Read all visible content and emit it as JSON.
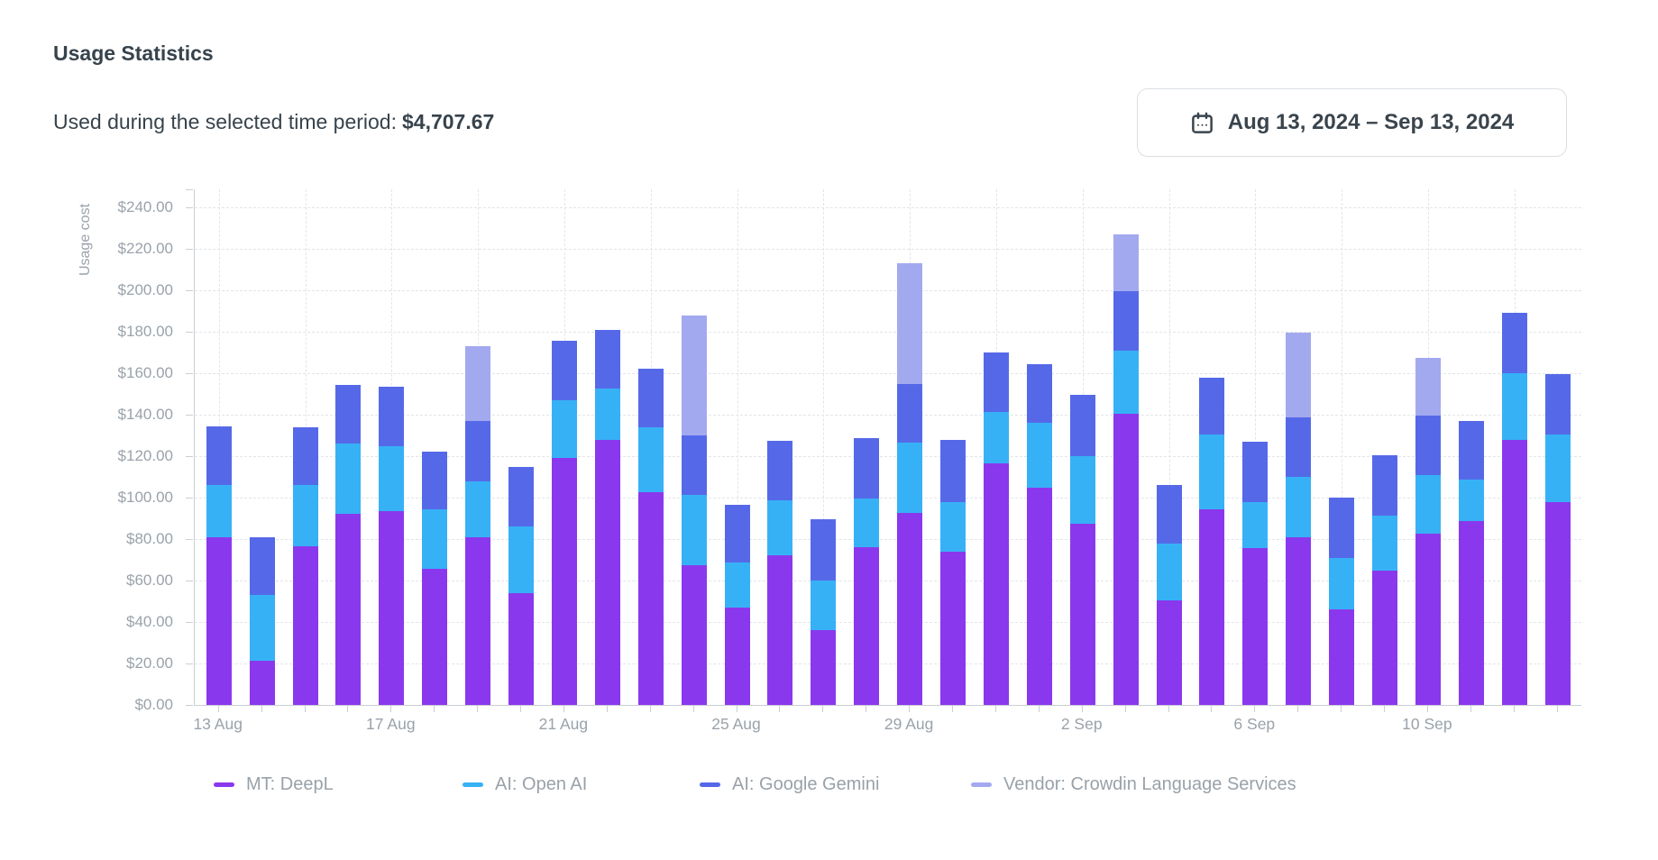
{
  "header": {
    "title": "Usage Statistics",
    "subtitle_label": "Used during the selected time period:",
    "subtitle_amount": "$4,707.67",
    "date_range_button": {
      "icon": "calendar-icon",
      "label": "Aug 13, 2024 – Sep 13, 2024"
    }
  },
  "chart_data": {
    "type": "bar",
    "stacked": true,
    "ylabel": "Usage cost",
    "ylim": [
      0,
      250
    ],
    "grid": "dashed",
    "legend_position": "bottom",
    "y_tick_values": [
      0,
      20,
      40,
      60,
      80,
      100,
      120,
      140,
      160,
      180,
      200,
      220,
      240
    ],
    "y_tick_labels": [
      "$0.00",
      "$20.00",
      "$40.00",
      "$60.00",
      "$80.00",
      "$100.00",
      "$120.00",
      "$140.00",
      "$160.00",
      "$180.00",
      "$200.00",
      "$220.00",
      "$240.00"
    ],
    "categories": [
      "13 Aug",
      "14 Aug",
      "15 Aug",
      "16 Aug",
      "17 Aug",
      "18 Aug",
      "19 Aug",
      "20 Aug",
      "21 Aug",
      "22 Aug",
      "23 Aug",
      "24 Aug",
      "25 Aug",
      "26 Aug",
      "27 Aug",
      "28 Aug",
      "29 Aug",
      "30 Aug",
      "31 Aug",
      "1 Sep",
      "2 Sep",
      "3 Sep",
      "4 Sep",
      "5 Sep",
      "6 Sep",
      "7 Sep",
      "8 Sep",
      "9 Sep",
      "10 Sep",
      "11 Sep",
      "12 Sep",
      "13 Sep"
    ],
    "x_tick_labels_shown": [
      "13 Aug",
      "17 Aug",
      "21 Aug",
      "25 Aug",
      "29 Aug",
      "2 Sep",
      "6 Sep",
      "10 Sep"
    ],
    "series": [
      {
        "name": "MT: DeepL",
        "color": "#8a38ed",
        "values": [
          81,
          21.5,
          76.5,
          92,
          93.5,
          65.5,
          81,
          54,
          119,
          128,
          102.5,
          67.5,
          47,
          72,
          36,
          76,
          92.5,
          74,
          116.5,
          105,
          87.5,
          140.5,
          50.5,
          94.5,
          75.5,
          81,
          46,
          65,
          82.5,
          88.5,
          128,
          98
        ]
      },
      {
        "name": "AI: Open AI",
        "color": "#37b1f6",
        "values": [
          25,
          31.5,
          29.5,
          34,
          31.5,
          29,
          27,
          32,
          28,
          24.5,
          31.5,
          34,
          21.5,
          26.5,
          24,
          23.5,
          34,
          24,
          25,
          31,
          32.5,
          30.5,
          27.5,
          36,
          22.5,
          29,
          25,
          26.5,
          28.5,
          20,
          32,
          32.5
        ]
      },
      {
        "name": "AI: Google Gemini",
        "color": "#5569e8",
        "values": [
          28.5,
          28,
          28,
          28.5,
          28.5,
          27.5,
          29,
          29,
          28.5,
          28.5,
          28,
          28.5,
          28,
          29,
          29.5,
          29,
          28.5,
          30,
          28.5,
          28.5,
          29.5,
          28.5,
          28,
          27.5,
          29,
          28.5,
          29,
          29,
          28.5,
          28.5,
          29,
          29
        ]
      },
      {
        "name": "Vendor: Crowdin Language Services",
        "color": "#a3a9ef",
        "values": [
          0,
          0,
          0,
          0,
          0,
          0,
          36,
          0,
          0,
          0,
          0,
          58,
          0,
          0,
          0,
          0,
          58,
          0,
          0,
          0,
          0,
          27.5,
          0,
          0,
          0,
          41,
          0,
          0,
          28,
          0,
          0,
          0
        ]
      }
    ]
  }
}
